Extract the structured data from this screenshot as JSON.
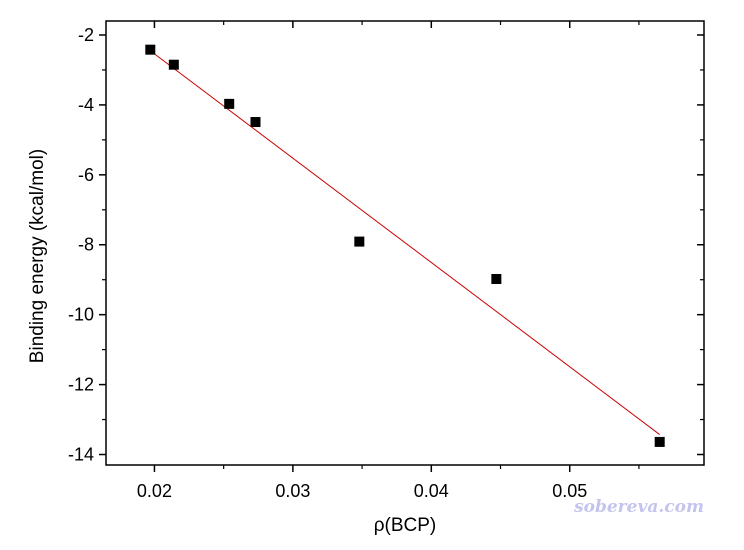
{
  "chart_data": {
    "type": "scatter",
    "xlabel": "ρ(BCP)",
    "ylabel": "Binding energy (kcal/mol)",
    "xlim": [
      0.0165,
      0.0597
    ],
    "ylim": [
      -14.3,
      -1.6
    ],
    "x_ticks": [
      0.02,
      0.03,
      0.04,
      0.05
    ],
    "x_tick_labels": [
      "0.02",
      "0.03",
      "0.04",
      "0.05"
    ],
    "y_ticks": [
      -2,
      -4,
      -6,
      -8,
      -10,
      -12,
      -14
    ],
    "y_tick_labels": [
      "-2",
      "-4",
      "-6",
      "-8",
      "-10",
      "-12",
      "-14"
    ],
    "grid": false,
    "series": [
      {
        "kind": "scatter",
        "marker": "square",
        "color": "#000000",
        "x": [
          0.0197,
          0.0214,
          0.0254,
          0.0273,
          0.0348,
          0.0447,
          0.0565
        ],
        "y": [
          -2.42,
          -2.85,
          -3.97,
          -4.49,
          -7.91,
          -8.98,
          -13.64
        ]
      },
      {
        "kind": "fit-line",
        "color": "#cc0000",
        "x": [
          0.0197,
          0.0565
        ],
        "y": [
          -2.45,
          -13.43
        ]
      }
    ]
  },
  "watermark": "sobereva.com"
}
